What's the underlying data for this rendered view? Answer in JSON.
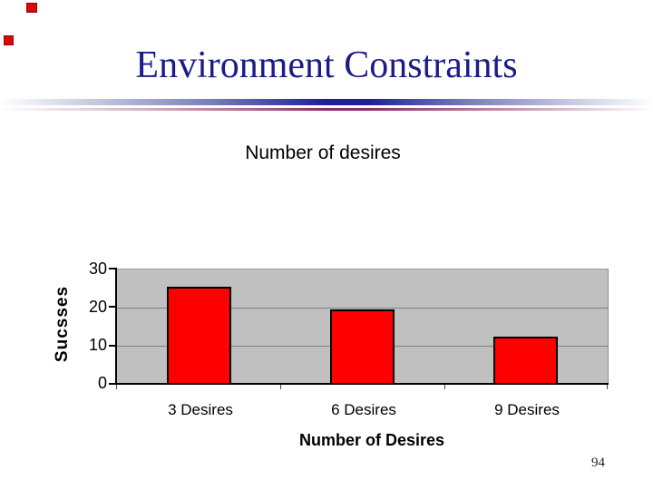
{
  "slide": {
    "title": "Environment Constraints",
    "page_number": "94",
    "title_color": "#1b1b8c",
    "accent_red": "#dd0806",
    "divider_blue": "#1e1e96",
    "divider_maroon": "#8d2963"
  },
  "chart_data": {
    "type": "bar",
    "title": "Number of desires",
    "categories": [
      "3 Desires",
      "6 Desires",
      "9 Desires"
    ],
    "values": [
      25.5,
      19.5,
      12.5
    ],
    "xlabel": "Number of Desires",
    "ylabel": "Sucsses",
    "ylim": [
      0,
      30
    ],
    "yticks": [
      "0",
      "10",
      "20",
      "30"
    ],
    "grid": true,
    "gridline_values": [
      10,
      20
    ],
    "legend": "none",
    "bar_color": "#ff0000",
    "bar_border_color": "#000000",
    "plot_background": "#c0c0c0",
    "gridline_color": "#808080"
  }
}
